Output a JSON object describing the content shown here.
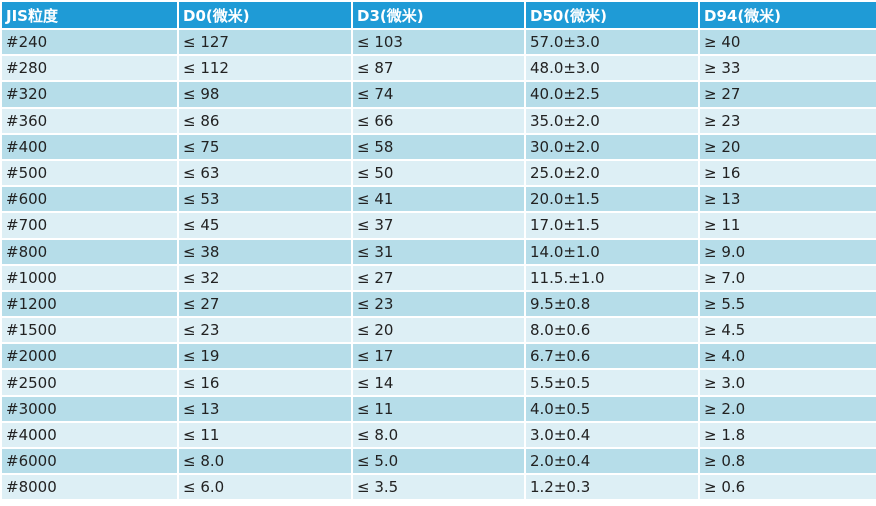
{
  "table": {
    "header": [
      "JIS粒度",
      "D0(微米)",
      "D3(微米)",
      "D50(微米)",
      "D94(微米)"
    ],
    "rows": [
      [
        "#240",
        "≤ 127",
        "≤ 103",
        "57.0±3.0",
        "≥ 40"
      ],
      [
        "#280",
        "≤ 112",
        "≤ 87",
        "48.0±3.0",
        "≥ 33"
      ],
      [
        "#320",
        "≤ 98",
        "≤ 74",
        "40.0±2.5",
        "≥ 27"
      ],
      [
        "#360",
        "≤ 86",
        "≤ 66",
        "35.0±2.0",
        "≥ 23"
      ],
      [
        "#400",
        "≤ 75",
        "≤ 58",
        "30.0±2.0",
        "≥ 20"
      ],
      [
        "#500",
        "≤ 63",
        "≤ 50",
        "25.0±2.0",
        "≥ 16"
      ],
      [
        "#600",
        "≤ 53",
        "≤ 41",
        "20.0±1.5",
        "≥ 13"
      ],
      [
        "#700",
        "≤ 45",
        "≤ 37",
        "17.0±1.5",
        "≥ 11"
      ],
      [
        "#800",
        "≤ 38",
        "≤ 31",
        "14.0±1.0",
        "≥ 9.0"
      ],
      [
        "#1000",
        "≤ 32",
        "≤ 27",
        "11.5.±1.0",
        "≥ 7.0"
      ],
      [
        "#1200",
        "≤ 27",
        "≤ 23",
        "9.5±0.8",
        "≥ 5.5"
      ],
      [
        "#1500",
        "≤ 23",
        "≤ 20",
        "8.0±0.6",
        "≥ 4.5"
      ],
      [
        "#2000",
        "≤ 19",
        "≤ 17",
        "6.7±0.6",
        "≥ 4.0"
      ],
      [
        "#2500",
        "≤ 16",
        "≤ 14",
        "5.5±0.5",
        "≥ 3.0"
      ],
      [
        "#3000",
        "≤ 13",
        "≤ 11",
        "4.0±0.5",
        "≥ 2.0"
      ],
      [
        "#4000",
        "≤ 11",
        "≤ 8.0",
        "3.0±0.4",
        "≥ 1.8"
      ],
      [
        "#6000",
        "≤ 8.0",
        "≤ 5.0",
        "2.0±0.4",
        "≥ 0.8"
      ],
      [
        "#8000",
        "≤ 6.0",
        "≤ 3.5",
        "1.2±0.3",
        "≥ 0.6"
      ]
    ]
  }
}
